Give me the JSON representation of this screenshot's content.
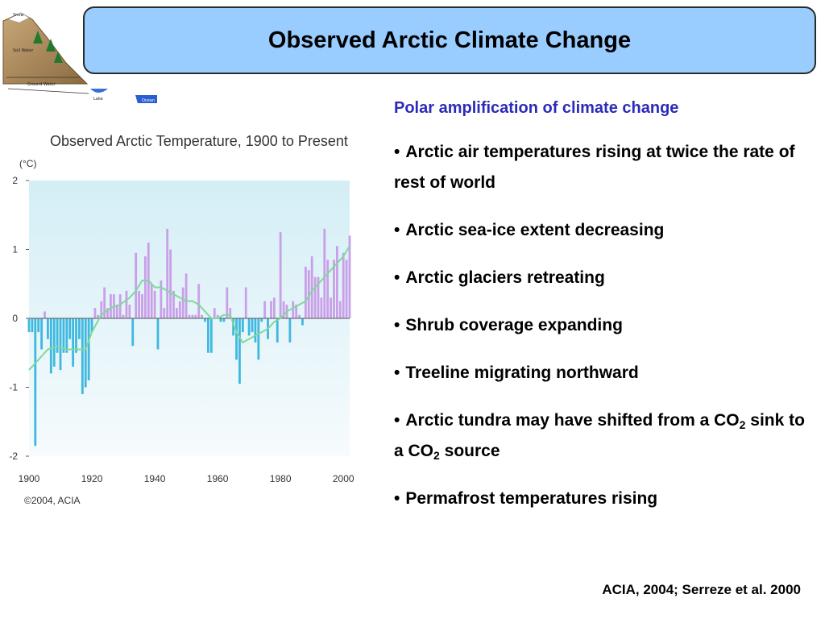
{
  "slide": {
    "title": "Observed Arctic Climate Change",
    "citation": "ACIA, 2004; Serreze et al. 2000"
  },
  "logo": {
    "labels": [
      "Snow",
      "Soil Water",
      "Ground Water",
      "Lake",
      "Ocean"
    ]
  },
  "text": {
    "subtitle": "Polar amplification of climate change",
    "bullets": [
      {
        "text": "Arctic air temperatures rising at twice the rate of rest of world"
      },
      {
        "text": "Arctic sea-ice extent decreasing"
      },
      {
        "text": "Arctic glaciers retreating"
      },
      {
        "text": "Shrub coverage expanding"
      },
      {
        "text": "Treeline migrating northward"
      },
      {
        "pre": "Arctic tundra may have shifted from a CO",
        "sub1": "2",
        "mid": " sink to a CO",
        "sub2": "2",
        "post": " source"
      },
      {
        "text": "Permafrost temperatures rising"
      }
    ],
    "bullet_char": "•"
  },
  "chart_data": {
    "type": "bar",
    "title": "Observed Arctic Temperature, 1900 to Present",
    "ylabel": "(°C)",
    "xlabel": "",
    "credit": "©2004, ACIA",
    "ylim": [
      -2,
      2
    ],
    "xlim": [
      1900,
      2002
    ],
    "yticks": [
      2,
      1,
      0,
      -1,
      -2
    ],
    "xticks": [
      1900,
      1920,
      1940,
      1960,
      1980,
      2000
    ],
    "positive_color": "#c9a0e8",
    "negative_color": "#3fb8e0",
    "line_color": "#7fd99a",
    "series": [
      {
        "years": [
          1900,
          1901,
          1902,
          1903,
          1904,
          1905,
          1906,
          1907,
          1908,
          1909,
          1910,
          1911,
          1912,
          1913,
          1914,
          1915,
          1916,
          1917,
          1918,
          1919,
          1920,
          1921,
          1922,
          1923,
          1924,
          1925,
          1926,
          1927,
          1928,
          1929,
          1930,
          1931,
          1932,
          1933,
          1934,
          1935,
          1936,
          1937,
          1938,
          1939,
          1940,
          1941,
          1942,
          1943,
          1944,
          1945,
          1946,
          1947,
          1948,
          1949,
          1950,
          1951,
          1952,
          1953,
          1954,
          1955,
          1956,
          1957,
          1958,
          1959,
          1960,
          1961,
          1962,
          1963,
          1964,
          1965,
          1966,
          1967,
          1968,
          1969,
          1970,
          1971,
          1972,
          1973,
          1974,
          1975,
          1976,
          1977,
          1978,
          1979,
          1980,
          1981,
          1982,
          1983,
          1984,
          1985,
          1986,
          1987,
          1988,
          1989,
          1990,
          1991,
          1992,
          1993,
          1994,
          1995,
          1996,
          1997,
          1998,
          1999,
          2000,
          2001,
          2002
        ],
        "values": [
          -0.2,
          -0.2,
          -1.85,
          -0.2,
          -0.45,
          0.1,
          -0.3,
          -0.8,
          -0.7,
          -0.5,
          -0.75,
          -0.5,
          -0.5,
          -0.3,
          -0.7,
          -0.5,
          -0.3,
          -1.1,
          -1.0,
          -0.9,
          -0.2,
          0.15,
          0.05,
          0.25,
          0.45,
          0.15,
          0.35,
          0.35,
          0.2,
          0.35,
          0.05,
          0.4,
          0.2,
          -0.4,
          0.95,
          0.4,
          0.35,
          0.9,
          1.1,
          0.5,
          0.4,
          -0.45,
          0.55,
          0.15,
          1.3,
          1.0,
          0.4,
          0.15,
          0.25,
          0.45,
          0.65,
          0.05,
          0.05,
          0.05,
          0.5,
          0.05,
          -0.05,
          -0.5,
          -0.5,
          0.15,
          0.05,
          -0.05,
          -0.05,
          0.45,
          0.15,
          -0.25,
          -0.6,
          -0.95,
          -0.2,
          0.45,
          -0.25,
          -0.2,
          -0.35,
          -0.6,
          -0.05,
          0.25,
          -0.3,
          0.25,
          0.3,
          -0.35,
          1.25,
          0.25,
          0.2,
          -0.35,
          0.25,
          0.2,
          0.05,
          -0.1,
          0.75,
          0.7,
          0.9,
          0.6,
          0.6,
          0.3,
          1.3,
          0.85,
          0.3,
          0.85,
          1.05,
          0.25,
          0.95,
          0.85,
          1.2
        ]
      },
      {
        "name": "",
        "years": [
          1900,
          1903,
          1906,
          1909,
          1912,
          1915,
          1918,
          1920,
          1923,
          1926,
          1929,
          1932,
          1934,
          1936,
          1938,
          1940,
          1942,
          1944,
          1946,
          1948,
          1950,
          1952,
          1954,
          1956,
          1958,
          1960,
          1962,
          1964,
          1966,
          1968,
          1970,
          1972,
          1974,
          1976,
          1978,
          1980,
          1982,
          1984,
          1986,
          1988,
          1990,
          1992,
          1994,
          1996,
          1998,
          2000,
          2002
        ],
        "values": [
          -0.75,
          -0.6,
          -0.45,
          -0.4,
          -0.45,
          -0.45,
          -0.45,
          -0.2,
          0.05,
          0.15,
          0.2,
          0.3,
          0.4,
          0.55,
          0.55,
          0.45,
          0.45,
          0.4,
          0.35,
          0.3,
          0.25,
          0.25,
          0.2,
          0.1,
          0.0,
          0.0,
          0.05,
          0.05,
          -0.2,
          -0.35,
          -0.3,
          -0.25,
          -0.2,
          -0.15,
          -0.05,
          0.0,
          0.1,
          0.15,
          0.2,
          0.25,
          0.4,
          0.5,
          0.6,
          0.7,
          0.8,
          0.9,
          1.05
        ]
      }
    ]
  }
}
